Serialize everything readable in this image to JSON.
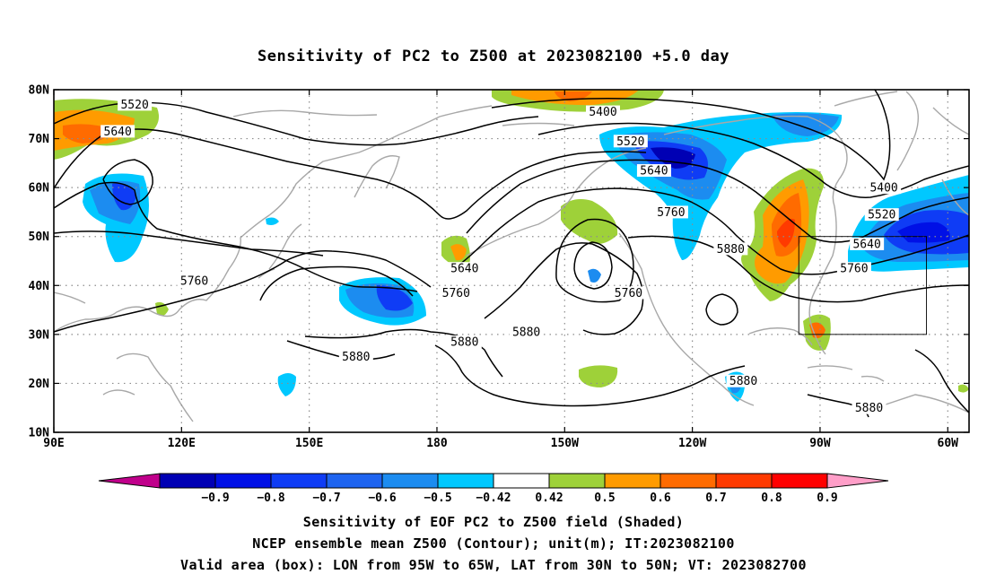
{
  "title": "Sensitivity of PC2 to Z500 at 2023082100 +5.0 day",
  "map": {
    "lon_range": [
      90,
      305
    ],
    "lat_range": [
      10,
      80
    ],
    "x_ticks": [
      {
        "lon": 90,
        "label": "90E"
      },
      {
        "lon": 120,
        "label": "120E"
      },
      {
        "lon": 150,
        "label": "150E"
      },
      {
        "lon": 180,
        "label": "180"
      },
      {
        "lon": 210,
        "label": "150W"
      },
      {
        "lon": 240,
        "label": "120W"
      },
      {
        "lon": 270,
        "label": "90W"
      },
      {
        "lon": 300,
        "label": "60W"
      }
    ],
    "y_ticks": [
      {
        "lat": 80,
        "label": "80N"
      },
      {
        "lat": 70,
        "label": "70N"
      },
      {
        "lat": 60,
        "label": "60N"
      },
      {
        "lat": 50,
        "label": "50N"
      },
      {
        "lat": 40,
        "label": "40N"
      },
      {
        "lat": 30,
        "label": "30N"
      },
      {
        "lat": 20,
        "label": "20N"
      },
      {
        "lat": 10,
        "label": "10N"
      }
    ],
    "grid": true,
    "valid_box": {
      "lon": [
        265,
        295
      ],
      "lat": [
        30,
        50
      ]
    },
    "contour_labels": [
      {
        "text": "5520",
        "lon": 109,
        "lat": 77
      },
      {
        "text": "5640",
        "lon": 105,
        "lat": 71.5
      },
      {
        "text": "5760",
        "lon": 123,
        "lat": 41
      },
      {
        "text": "5880",
        "lon": 161,
        "lat": 25.5
      },
      {
        "text": "5880",
        "lon": 186.5,
        "lat": 28.5
      },
      {
        "text": "5640",
        "lon": 186.5,
        "lat": 43.5
      },
      {
        "text": "5760",
        "lon": 184.5,
        "lat": 38.5
      },
      {
        "text": "5400",
        "lon": 219,
        "lat": 75.5
      },
      {
        "text": "5520",
        "lon": 225.5,
        "lat": 69.5
      },
      {
        "text": "5640",
        "lon": 231,
        "lat": 63.5
      },
      {
        "text": "5760",
        "lon": 235,
        "lat": 55
      },
      {
        "text": "5880",
        "lon": 201,
        "lat": 30.5
      },
      {
        "text": "5760",
        "lon": 225,
        "lat": 38.5
      },
      {
        "text": "5880",
        "lon": 249,
        "lat": 47.5
      },
      {
        "text": "5880",
        "lon": 252,
        "lat": 20.5
      },
      {
        "text": "5400",
        "lon": 285,
        "lat": 60
      },
      {
        "text": "5520",
        "lon": 284.5,
        "lat": 54.5
      },
      {
        "text": "5640",
        "lon": 281,
        "lat": 48.5
      },
      {
        "text": "5760",
        "lon": 278,
        "lat": 43.5
      },
      {
        "text": "5880",
        "lon": 281.5,
        "lat": 15
      }
    ]
  },
  "colorbar": {
    "colors": [
      "#c0008b",
      "#0000b4",
      "#0010e6",
      "#0f3cf5",
      "#1e64f0",
      "#1c8cf0",
      "#00c8ff",
      "#ffffff",
      "#9ed139",
      "#ff9b00",
      "#ff6b00",
      "#ff3a00",
      "#ff0000",
      "#ff9ec8"
    ],
    "labels": [
      "−0.9",
      "−0.8",
      "−0.7",
      "−0.6",
      "−0.5",
      "−0.42",
      "0.42",
      "0.5",
      "0.6",
      "0.7",
      "0.8",
      "0.9"
    ]
  },
  "captions": [
    "Sensitivity of EOF PC2 to Z500 field (Shaded)",
    "NCEP ensemble mean Z500 (Contour); unit(m); IT:2023082100",
    "Valid area (box): LON from 95W to 65W, LAT from 30N to 50N; VT: 2023082700"
  ]
}
